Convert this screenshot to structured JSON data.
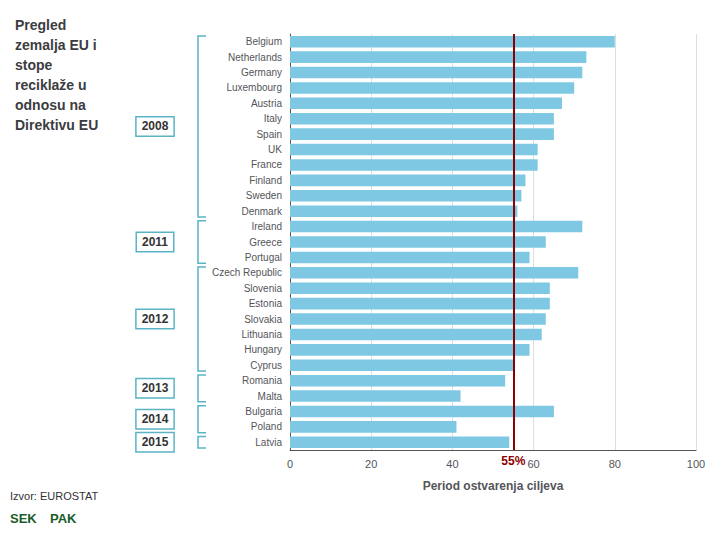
{
  "chart_data": {
    "type": "bar",
    "orientation": "horizontal",
    "title": "Pregled\nzemalja EU i\nstope\nreciklaže u\nodnosu na\nDirektivu EU",
    "xlabel": "Period ostvarenja ciljeva",
    "color": "#7ec8e3",
    "groups": [
      {
        "name": "2008",
        "categories": [
          "Belgium",
          "Netherlands",
          "Germany",
          "Luxembourg",
          "Austria",
          "Italy",
          "Spain",
          "UK",
          "France",
          "Finland",
          "Sweden",
          "Denmark"
        ],
        "values": [
          80,
          73,
          72,
          70,
          67,
          65,
          65,
          61,
          61,
          58,
          57,
          56
        ]
      },
      {
        "name": "2011",
        "categories": [
          "Ireland",
          "Greece",
          "Portugal"
        ],
        "values": [
          72,
          63,
          59
        ]
      },
      {
        "name": "2012",
        "categories": [
          "Czech Republic",
          "Slovenia",
          "Estonia",
          "Slovakia",
          "Lithuania",
          "Hungary",
          "Cyprus"
        ],
        "values": [
          71,
          64,
          64,
          63,
          62,
          59,
          55
        ]
      },
      {
        "name": "2013",
        "categories": [
          "Romania",
          "Malta"
        ],
        "values": [
          53,
          42
        ]
      },
      {
        "name": "2014",
        "categories": [
          "Bulgaria",
          "Poland"
        ],
        "values": [
          65,
          41
        ]
      },
      {
        "name": "2015",
        "categories": [
          "Latvia"
        ],
        "values": [
          54
        ]
      }
    ],
    "xlim": [
      0,
      100
    ],
    "xticks": [
      0,
      20,
      40,
      60,
      80,
      100
    ],
    "grid": true,
    "target_line": {
      "value": 55,
      "label": "55%",
      "color": "#8b0000"
    },
    "annotations": [
      "Izvor: EUROSTAT",
      "SEK",
      "PAK"
    ]
  }
}
